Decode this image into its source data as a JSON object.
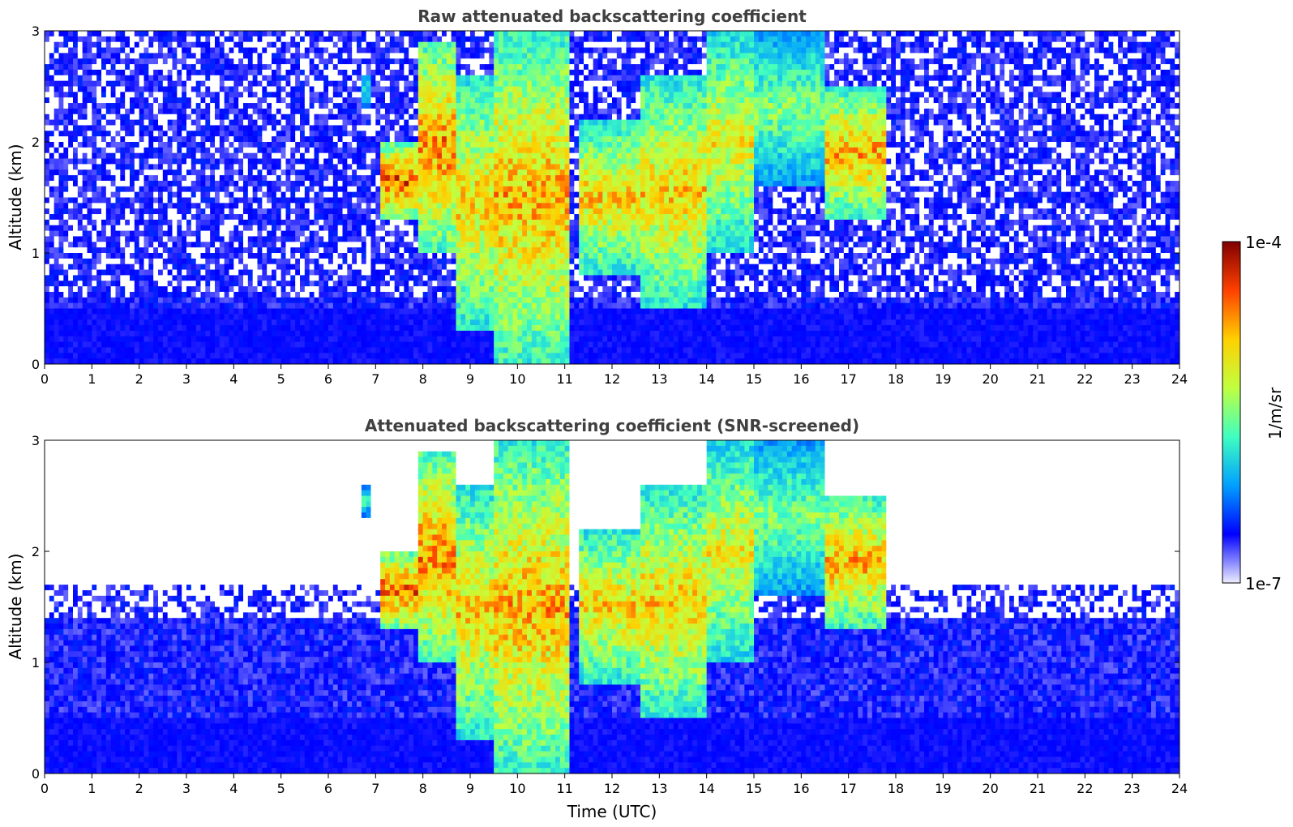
{
  "chart_data": [
    {
      "type": "heatmap",
      "title": "Raw attenuated backscattering coefficient",
      "xlabel": "",
      "ylabel": "Altitude (km)",
      "xlim": [
        0,
        24
      ],
      "ylim": [
        0,
        3
      ],
      "xticks": [
        "0",
        "1",
        "2",
        "3",
        "4",
        "5",
        "6",
        "7",
        "8",
        "9",
        "10",
        "11",
        "12",
        "13",
        "14",
        "15",
        "16",
        "17",
        "18",
        "19",
        "20",
        "21",
        "22",
        "23",
        "24"
      ],
      "yticks": [
        "0",
        "1",
        "2",
        "3"
      ],
      "screened": false,
      "clouds": [
        {
          "t0": 7.1,
          "t1": 7.9,
          "z0": 1.3,
          "z1": 2.0,
          "level": 0.9
        },
        {
          "t0": 7.9,
          "t1": 8.7,
          "z0": 1.0,
          "z1": 2.9,
          "level": 0.85
        },
        {
          "t0": 8.7,
          "t1": 9.5,
          "z0": 0.3,
          "z1": 2.6,
          "level": 0.75
        },
        {
          "t0": 9.5,
          "t1": 11.1,
          "z0": 0.0,
          "z1": 3.0,
          "level": 0.8
        },
        {
          "t0": 11.3,
          "t1": 12.6,
          "z0": 0.8,
          "z1": 2.2,
          "level": 0.75
        },
        {
          "t0": 12.6,
          "t1": 14.0,
          "z0": 0.5,
          "z1": 2.6,
          "level": 0.75
        },
        {
          "t0": 14.0,
          "t1": 15.0,
          "z0": 1.0,
          "z1": 3.0,
          "level": 0.7
        },
        {
          "t0": 15.0,
          "t1": 16.5,
          "z0": 1.6,
          "z1": 3.0,
          "level": 0.55
        },
        {
          "t0": 16.5,
          "t1": 17.8,
          "z0": 1.3,
          "z1": 2.5,
          "level": 0.8
        },
        {
          "t0": 6.7,
          "t1": 6.9,
          "z0": 2.3,
          "z1": 2.6,
          "level": 0.45
        }
      ]
    },
    {
      "type": "heatmap",
      "title": "Attenuated backscattering coefficient (SNR-screened)",
      "xlabel": "Time (UTC)",
      "ylabel": "Altitude (km)",
      "xlim": [
        0,
        24
      ],
      "ylim": [
        0,
        3
      ],
      "xticks": [
        "0",
        "1",
        "2",
        "3",
        "4",
        "5",
        "6",
        "7",
        "8",
        "9",
        "10",
        "11",
        "12",
        "13",
        "14",
        "15",
        "16",
        "17",
        "18",
        "19",
        "20",
        "21",
        "22",
        "23",
        "24"
      ],
      "yticks": [
        "0",
        "1",
        "2",
        "3"
      ],
      "screened": true,
      "clouds": [
        {
          "t0": 7.1,
          "t1": 7.9,
          "z0": 1.3,
          "z1": 2.0,
          "level": 0.9
        },
        {
          "t0": 7.9,
          "t1": 8.7,
          "z0": 1.0,
          "z1": 2.9,
          "level": 0.85
        },
        {
          "t0": 8.7,
          "t1": 9.5,
          "z0": 0.3,
          "z1": 2.6,
          "level": 0.75
        },
        {
          "t0": 9.5,
          "t1": 11.1,
          "z0": 0.0,
          "z1": 3.0,
          "level": 0.8
        },
        {
          "t0": 11.3,
          "t1": 12.6,
          "z0": 0.8,
          "z1": 2.2,
          "level": 0.75
        },
        {
          "t0": 12.6,
          "t1": 14.0,
          "z0": 0.5,
          "z1": 2.6,
          "level": 0.75
        },
        {
          "t0": 14.0,
          "t1": 15.0,
          "z0": 1.0,
          "z1": 3.0,
          "level": 0.7
        },
        {
          "t0": 15.0,
          "t1": 16.5,
          "z0": 1.6,
          "z1": 3.0,
          "level": 0.55
        },
        {
          "t0": 16.5,
          "t1": 17.8,
          "z0": 1.3,
          "z1": 2.5,
          "level": 0.8
        },
        {
          "t0": 6.7,
          "t1": 6.9,
          "z0": 2.3,
          "z1": 2.6,
          "level": 0.45
        }
      ]
    }
  ],
  "colorbar": {
    "label": "1/m/sr",
    "max_label": "1e-4",
    "min_label": "1e-7",
    "colormap": "jet",
    "colors": [
      "#eeeeff",
      "#0000ff",
      "#00a0ff",
      "#40ffc0",
      "#c0ff40",
      "#ffd000",
      "#ff4000",
      "#800000"
    ]
  }
}
